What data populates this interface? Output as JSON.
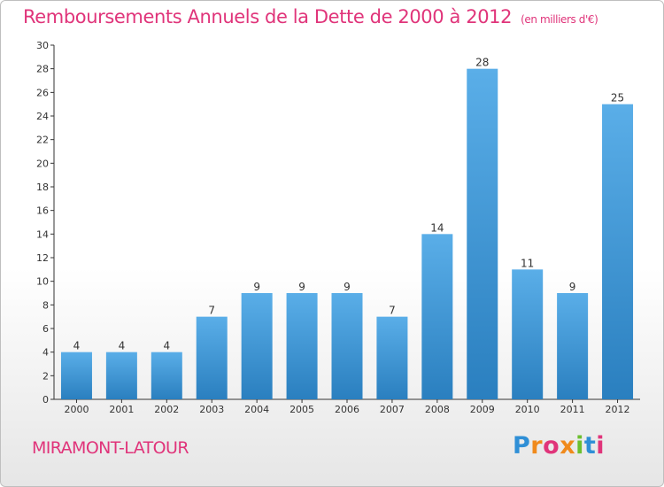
{
  "title": "Remboursements Annuels de la Dette de 2000 à 2012",
  "subtitle": "(en milliers d'€)",
  "town": "MIRAMONT-LATOUR",
  "brand": "Proxiti",
  "colors": {
    "title": "#e0347a",
    "bar_top": "#5aaee8",
    "bar_bottom": "#2a7fbf",
    "axis": "#333333",
    "grid": "#dddddd",
    "brand_letters": [
      "#2f8fd6",
      "#f08a1c",
      "#e0347a",
      "#f08a1c",
      "#6cbf2f",
      "#2f8fd6",
      "#e0347a"
    ]
  },
  "chart_data": {
    "type": "bar",
    "title": "Remboursements Annuels de la Dette de 2000 à 2012",
    "subtitle": "(en milliers d'€)",
    "categories": [
      "2000",
      "2001",
      "2002",
      "2003",
      "2004",
      "2005",
      "2006",
      "2007",
      "2008",
      "2009",
      "2010",
      "2011",
      "2012"
    ],
    "values": [
      4,
      4,
      4,
      7,
      9,
      9,
      9,
      7,
      14,
      28,
      11,
      9,
      25
    ],
    "ylim": [
      0,
      30
    ],
    "yticks": [
      0,
      2,
      4,
      6,
      8,
      10,
      12,
      14,
      16,
      18,
      20,
      22,
      24,
      26,
      28,
      30
    ],
    "xlabel": "",
    "ylabel": "",
    "grid": false,
    "data_labels": true
  }
}
